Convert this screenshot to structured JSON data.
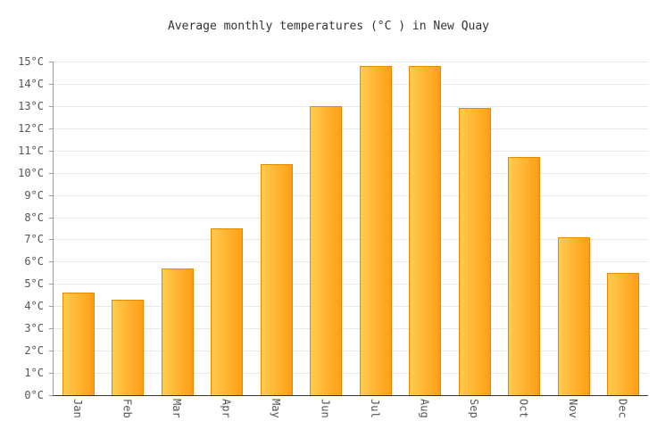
{
  "title": "Average monthly temperatures (°C ) in New Quay",
  "colors": {
    "bar_gradient_start": "#FFCB4D",
    "bar_gradient_end": "#FF9E17",
    "bar_border": "#E68A00",
    "grid": "#E8E8E8",
    "axis_y": "#9A9A9A",
    "axis_x": "#333333",
    "label_text": "#555555",
    "title_text": "#333333"
  },
  "chart_data": {
    "type": "bar",
    "title": "Average monthly temperatures (°C ) in New Quay",
    "categories": [
      "Jan",
      "Feb",
      "Mar",
      "Apr",
      "May",
      "Jun",
      "Jul",
      "Aug",
      "Sep",
      "Oct",
      "Nov",
      "Dec"
    ],
    "values": [
      4.6,
      4.3,
      5.7,
      7.5,
      10.4,
      13.0,
      14.8,
      14.8,
      12.9,
      10.7,
      7.1,
      5.5
    ],
    "xlabel": "",
    "ylabel": "",
    "ylim": [
      0,
      15
    ],
    "y_tick_step": 1,
    "y_tick_labels": [
      "0°C",
      "1°C",
      "2°C",
      "3°C",
      "4°C",
      "5°C",
      "6°C",
      "7°C",
      "8°C",
      "9°C",
      "10°C",
      "11°C",
      "12°C",
      "13°C",
      "14°C",
      "15°C"
    ],
    "grid": true,
    "legend": false,
    "bar_unit": "°C"
  }
}
